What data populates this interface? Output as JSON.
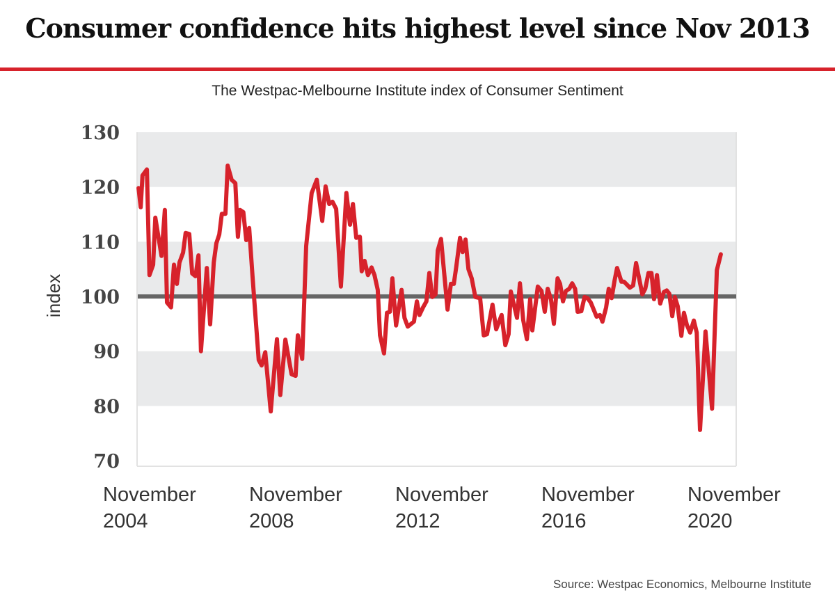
{
  "chart_data": {
    "type": "line",
    "title": "Consumer confidence hits highest level since Nov 2013",
    "subtitle": "The Westpac-Melbourne Institute index of Consumer Sentiment",
    "xlabel": "",
    "ylabel": "index",
    "source": "Source: Westpac Economics, Melbourne Institute",
    "ylim": [
      70,
      130
    ],
    "xlim": [
      2004.83,
      2021.21
    ],
    "yticks": [
      130,
      120,
      110,
      100,
      90,
      80,
      70
    ],
    "xticks": [
      {
        "value": 2004.83,
        "line1": "November",
        "line2": "2004"
      },
      {
        "value": 2008.83,
        "line1": "November",
        "line2": "2008"
      },
      {
        "value": 2012.83,
        "line1": "November",
        "line2": "2012"
      },
      {
        "value": 2016.83,
        "line1": "November",
        "line2": "2016"
      },
      {
        "value": 2020.83,
        "line1": "November",
        "line2": "2020"
      }
    ],
    "bands": [
      [
        120,
        130
      ],
      [
        100,
        110
      ],
      [
        80,
        90
      ]
    ],
    "reference_line": 100,
    "colors": {
      "line": "#d7222b",
      "reference": "#666666",
      "band": "#e9eaeb"
    },
    "series": [
      {
        "name": "Consumer Sentiment index",
        "x": [
          2004.85,
          2004.91,
          2004.96,
          2005.08,
          2005.15,
          2005.25,
          2005.31,
          2005.48,
          2005.57,
          2005.63,
          2005.74,
          2005.82,
          2005.9,
          2005.97,
          2006.07,
          2006.14,
          2006.24,
          2006.32,
          2006.41,
          2006.49,
          2006.56,
          2006.72,
          2006.81,
          2006.91,
          2006.98,
          2007.06,
          2007.13,
          2007.23,
          2007.29,
          2007.4,
          2007.5,
          2007.57,
          2007.63,
          2007.72,
          2007.8,
          2007.88,
          2007.97,
          2008.14,
          2008.22,
          2008.32,
          2008.47,
          2008.64,
          2008.73,
          2008.87,
          2009.04,
          2009.15,
          2009.21,
          2009.33,
          2009.44,
          2009.59,
          2009.73,
          2009.88,
          2009.97,
          2010.07,
          2010.16,
          2010.26,
          2010.39,
          2010.54,
          2010.64,
          2010.72,
          2010.81,
          2010.91,
          2010.96,
          2011.04,
          2011.13,
          2011.23,
          2011.31,
          2011.4,
          2011.46,
          2011.57,
          2011.65,
          2011.73,
          2011.8,
          2011.9,
          2012.05,
          2012.13,
          2012.22,
          2012.39,
          2012.47,
          2012.54,
          2012.64,
          2012.73,
          2012.81,
          2012.89,
          2012.98,
          2013.04,
          2013.13,
          2013.31,
          2013.4,
          2013.48,
          2013.55,
          2013.65,
          2013.72,
          2013.8,
          2013.88,
          2013.97,
          2014.07,
          2014.2,
          2014.3,
          2014.39,
          2014.54,
          2014.64,
          2014.79,
          2014.89,
          2014.98,
          2015.04,
          2015.21,
          2015.29,
          2015.38,
          2015.48,
          2015.57,
          2015.63,
          2015.78,
          2015.88,
          2015.97,
          2016.05,
          2016.14,
          2016.22,
          2016.32,
          2016.39,
          2016.47,
          2016.55,
          2016.64,
          2016.72,
          2016.8,
          2016.87,
          2016.97,
          2017.06,
          2017.14,
          2017.23,
          2017.39,
          2017.48,
          2017.55,
          2017.65,
          2017.72,
          2017.8,
          2017.88,
          2017.95,
          2018.07,
          2018.14,
          2018.3,
          2018.39,
          2018.47,
          2018.64,
          2018.72,
          2018.81,
          2018.89,
          2018.96,
          2019.04,
          2019.13,
          2019.23,
          2019.31,
          2019.38,
          2019.46,
          2019.53,
          2019.61,
          2019.71,
          2019.78,
          2019.86,
          2019.95,
          2020.05,
          2020.13,
          2020.22,
          2020.37,
          2020.55,
          2020.68,
          2020.79
        ],
        "values": [
          119.8,
          116.3,
          122.1,
          123.2,
          103.9,
          105.8,
          114.4,
          107.4,
          115.8,
          98.9,
          98.0,
          105.8,
          102.3,
          106.2,
          108.0,
          111.6,
          111.4,
          104.2,
          103.7,
          107.5,
          90.0,
          105.2,
          94.9,
          106.2,
          109.7,
          111.3,
          115.1,
          115.1,
          123.9,
          121.3,
          120.7,
          110.9,
          115.8,
          115.4,
          110.3,
          112.5,
          103.7,
          88.4,
          87.4,
          89.8,
          79.0,
          92.2,
          82.0,
          92.1,
          85.8,
          85.5,
          92.9,
          88.6,
          109.2,
          118.9,
          121.3,
          113.8,
          120.1,
          116.9,
          117.3,
          116.0,
          101.8,
          118.9,
          113.1,
          116.9,
          110.7,
          110.9,
          104.6,
          106.5,
          103.9,
          105.3,
          103.9,
          101.2,
          92.9,
          89.6,
          97.0,
          97.2,
          103.3,
          94.7,
          101.2,
          96.1,
          94.5,
          95.4,
          99.1,
          96.6,
          98.0,
          99.1,
          104.3,
          99.9,
          100.4,
          108.4,
          110.5,
          97.6,
          102.3,
          102.3,
          105.5,
          110.7,
          108.1,
          110.4,
          105.0,
          103.3,
          99.9,
          99.7,
          92.9,
          93.1,
          98.5,
          94.0,
          96.6,
          91.1,
          93.1,
          100.9,
          96.1,
          102.4,
          95.7,
          92.2,
          99.5,
          93.8,
          101.8,
          101.0,
          97.2,
          101.4,
          99.5,
          95.0,
          103.3,
          102.3,
          99.1,
          101.0,
          101.4,
          102.4,
          101.4,
          97.2,
          97.3,
          99.9,
          99.7,
          98.9,
          96.3,
          96.6,
          95.4,
          98.0,
          101.4,
          99.7,
          102.9,
          105.2,
          102.7,
          102.7,
          101.6,
          102.0,
          106.1,
          100.4,
          101.4,
          104.3,
          104.3,
          99.5,
          103.9,
          98.7,
          100.8,
          101.1,
          100.5,
          96.4,
          99.9,
          98.2,
          92.8,
          97.0,
          94.8,
          93.4,
          95.6,
          93.4,
          75.6,
          93.6,
          79.5,
          104.8,
          107.7
        ]
      }
    ]
  }
}
